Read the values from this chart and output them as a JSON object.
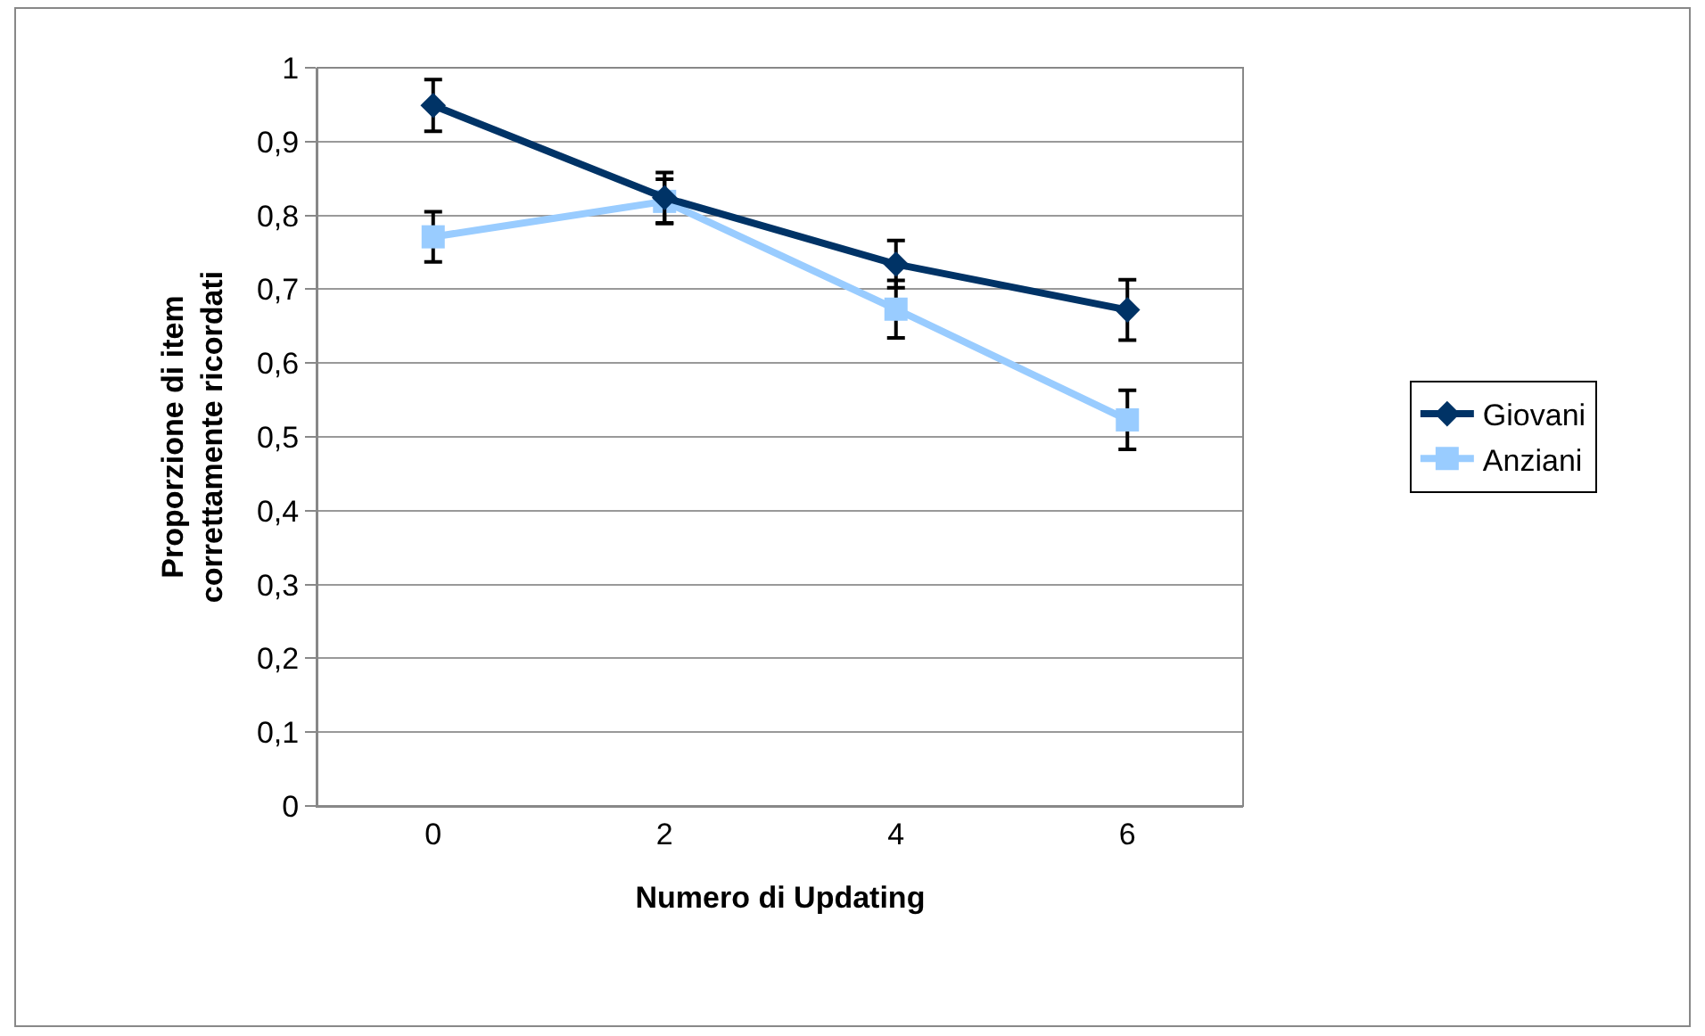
{
  "chart_data": {
    "type": "line",
    "xlabel": "Numero di Updating",
    "ylabel": "Proporzione di item\ncorrettamente ricordati",
    "categories": [
      "0",
      "2",
      "4",
      "6"
    ],
    "ylim": [
      0,
      1
    ],
    "yticks": [
      0,
      {
        "value": 0.1,
        "label": "0,1"
      },
      {
        "value": 0.2,
        "label": "0,2"
      },
      {
        "value": 0.3,
        "label": "0,3"
      },
      {
        "value": 0.4,
        "label": "0,4"
      },
      {
        "value": 0.5,
        "label": "0,5"
      },
      {
        "value": 0.6,
        "label": "0,6"
      },
      {
        "value": 0.7,
        "label": "0,7"
      },
      {
        "value": 0.8,
        "label": "0,8"
      },
      {
        "value": 0.9,
        "label": "0,9"
      },
      1
    ],
    "grid": "y",
    "legend": "right",
    "line_style": "solid",
    "series": [
      {
        "name": "Giovani",
        "color": "#003366",
        "marker": "diamond",
        "values": [
          0.949,
          0.824,
          0.734,
          0.672
        ],
        "errors": [
          0.035,
          0.034,
          0.032,
          0.041
        ]
      },
      {
        "name": "Anziani",
        "color": "#99ccff",
        "marker": "square",
        "values": [
          0.771,
          0.819,
          0.673,
          0.523
        ],
        "errors": [
          0.034,
          0.03,
          0.039,
          0.04
        ]
      }
    ]
  }
}
